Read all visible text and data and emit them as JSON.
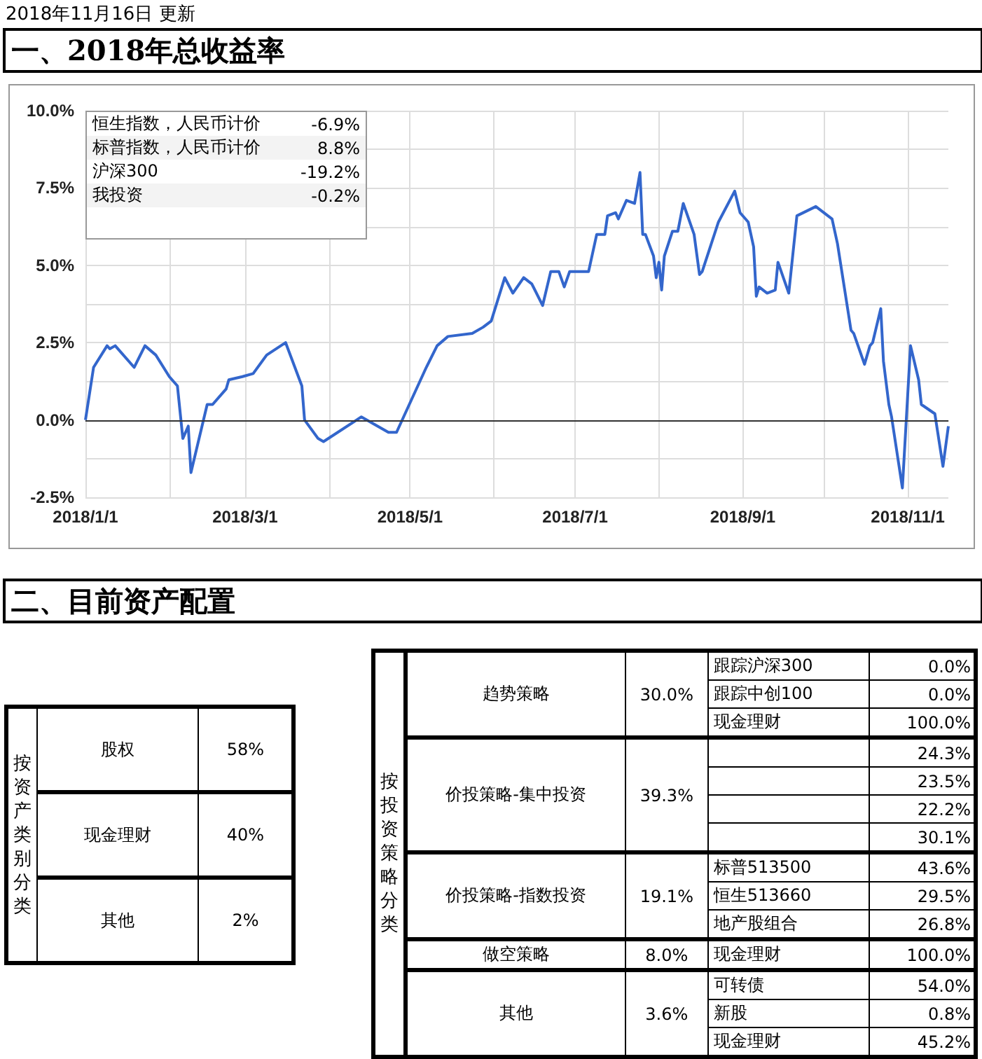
{
  "chart_data": [
    {
      "type": "line",
      "subtitle": "2018年11月16日 更新",
      "title": "一、2018年总收益率",
      "x": [
        "2018-01-01",
        "2018-01-04",
        "2018-01-09",
        "2018-01-10",
        "2018-01-12",
        "2018-01-19",
        "2018-01-23",
        "2018-01-27",
        "2018-02-01",
        "2018-02-04",
        "2018-02-06",
        "2018-02-08",
        "2018-02-09",
        "2018-02-15",
        "2018-02-17",
        "2018-02-22",
        "2018-02-23",
        "2018-02-28",
        "2018-03-04",
        "2018-03-09",
        "2018-03-16",
        "2018-03-22",
        "2018-03-23",
        "2018-03-28",
        "2018-03-30",
        "2018-04-13",
        "2018-04-23",
        "2018-04-26",
        "2018-05-07",
        "2018-05-11",
        "2018-05-15",
        "2018-05-24",
        "2018-05-28",
        "2018-05-31",
        "2018-06-05",
        "2018-06-08",
        "2018-06-12",
        "2018-06-15",
        "2018-06-19",
        "2018-06-22",
        "2018-06-25",
        "2018-06-27",
        "2018-06-29",
        "2018-07-06",
        "2018-07-09",
        "2018-07-12",
        "2018-07-13",
        "2018-07-16",
        "2018-07-17",
        "2018-07-20",
        "2018-07-23",
        "2018-07-25",
        "2018-07-26",
        "2018-07-27",
        "2018-07-30",
        "2018-07-31",
        "2018-08-01",
        "2018-08-02",
        "2018-08-03",
        "2018-08-06",
        "2018-08-08",
        "2018-08-10",
        "2018-08-14",
        "2018-08-16",
        "2018-08-17",
        "2018-08-23",
        "2018-08-29",
        "2018-08-31",
        "2018-09-03",
        "2018-09-05",
        "2018-09-06",
        "2018-09-07",
        "2018-09-10",
        "2018-09-13",
        "2018-09-14",
        "2018-09-18",
        "2018-09-21",
        "2018-09-28",
        "2018-10-04",
        "2018-10-06",
        "2018-10-11",
        "2018-10-12",
        "2018-10-16",
        "2018-10-18",
        "2018-10-19",
        "2018-10-22",
        "2018-10-23",
        "2018-10-25",
        "2018-10-26",
        "2018-10-30",
        "2018-11-02",
        "2018-11-05",
        "2018-11-06",
        "2018-11-11",
        "2018-11-14",
        "2018-11-16"
      ],
      "values": [
        0.0,
        1.7,
        2.4,
        2.3,
        2.4,
        1.7,
        2.4,
        2.1,
        1.4,
        1.1,
        -0.6,
        -0.2,
        -1.7,
        0.5,
        0.5,
        1.0,
        1.3,
        1.4,
        1.5,
        2.1,
        2.5,
        1.1,
        0.0,
        -0.6,
        -0.7,
        0.1,
        -0.4,
        -0.4,
        1.7,
        2.4,
        2.7,
        2.8,
        3.0,
        3.2,
        4.6,
        4.1,
        4.6,
        4.4,
        3.7,
        4.8,
        4.8,
        4.3,
        4.8,
        4.8,
        6.0,
        6.0,
        6.6,
        6.7,
        6.5,
        7.1,
        7.0,
        8.0,
        6.0,
        6.0,
        5.3,
        4.6,
        5.1,
        4.2,
        5.3,
        6.1,
        6.1,
        7.0,
        6.0,
        4.7,
        4.8,
        6.4,
        7.4,
        6.7,
        6.4,
        5.6,
        4.0,
        4.3,
        4.1,
        4.2,
        5.1,
        4.1,
        6.6,
        6.9,
        6.5,
        5.7,
        2.9,
        2.8,
        1.8,
        2.4,
        2.5,
        3.6,
        1.9,
        0.5,
        0.1,
        -2.2,
        2.4,
        1.3,
        0.5,
        0.2,
        -1.5,
        -0.2
      ],
      "color": "#3366cc",
      "marker": "none",
      "grid": true,
      "xlim": [
        "2018-01-01",
        "2018-11-16"
      ],
      "xticks": [
        {
          "value": "2018-01-01",
          "label": "2018/1/1"
        },
        {
          "value": "2018-02-01",
          "label": null
        },
        {
          "value": "2018-03-01",
          "label": "2018/3/1"
        },
        {
          "value": "2018-04-01",
          "label": null
        },
        {
          "value": "2018-05-01",
          "label": "2018/5/1"
        },
        {
          "value": "2018-06-01",
          "label": null
        },
        {
          "value": "2018-07-01",
          "label": "2018/7/1"
        },
        {
          "value": "2018-08-01",
          "label": null
        },
        {
          "value": "2018-09-01",
          "label": "2018/9/1"
        },
        {
          "value": "2018-10-01",
          "label": null
        },
        {
          "value": "2018-11-01",
          "label": "2018/11/1"
        }
      ],
      "ylim": [
        -2.5,
        10
      ],
      "yticks": [
        {
          "value": -2.5,
          "label": "-2.5%"
        },
        {
          "value": -1.25,
          "label": null
        },
        {
          "value": 0,
          "label": "0.0%"
        },
        {
          "value": 1.25,
          "label": null
        },
        {
          "value": 2.5,
          "label": "2.5%"
        },
        {
          "value": 3.75,
          "label": null
        },
        {
          "value": 5,
          "label": "5.0%"
        },
        {
          "value": 6.25,
          "label": null
        },
        {
          "value": 7.5,
          "label": "7.5%"
        },
        {
          "value": 8.75,
          "label": null
        },
        {
          "value": 10,
          "label": "10.0%"
        }
      ],
      "ref_lines": [
        {
          "axis": "y",
          "value": 0,
          "color": "#333333"
        }
      ],
      "annotations": [
        "恒生指数，人民币计价",
        "-6.9%",
        "标普指数，人民币计价",
        "8.8%",
        "沪深300",
        "-19.2%",
        "我投资",
        "-0.2%"
      ]
    },
    {
      "type": "other",
      "title": "二、目前资产配置",
      "annotations": [
        "按资产类别分类",
        "股权",
        "58%",
        "现金理财",
        "40%",
        "其他",
        "2%"
      ]
    },
    {
      "type": "other",
      "annotations": [
        "按投资策略分类",
        "趋势策略",
        "30.0%",
        "跟踪沪深300",
        "0.0%",
        "跟踪中创100",
        "0.0%",
        "现金理财",
        "100.0%",
        "价投策略-集中投资",
        "39.3%",
        "24.3%",
        "23.5%",
        "22.2%",
        "30.1%",
        "价投策略-指数投资",
        "19.1%",
        "标普513500",
        "43.6%",
        "恒生513660",
        "29.5%",
        "地产股组合",
        "26.8%",
        "做空策略",
        "8.0%",
        "现金理财",
        "100.0%",
        "其他",
        "3.6%",
        "可转债",
        "54.0%",
        "新股",
        "0.8%",
        "现金理财",
        "45.2%"
      ]
    }
  ]
}
